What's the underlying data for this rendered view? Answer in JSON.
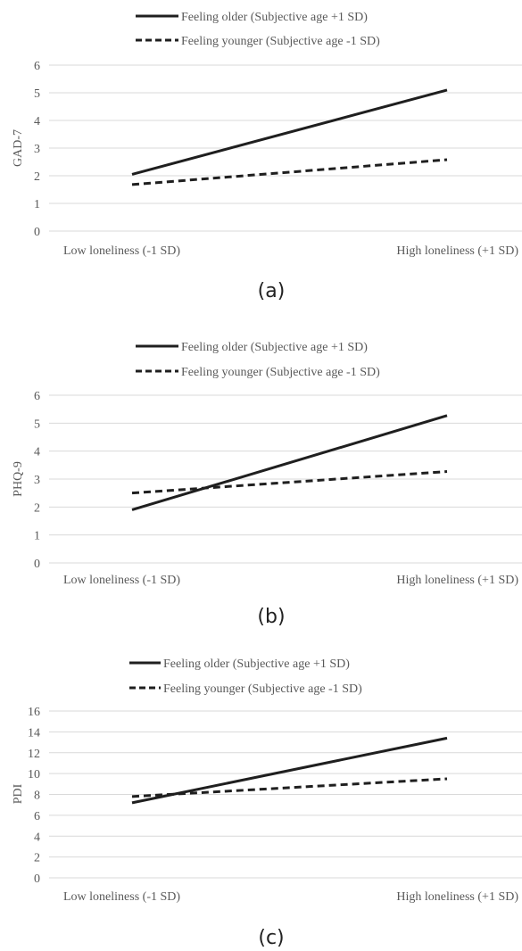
{
  "chart_data": [
    {
      "type": "line",
      "panel_label": "(a)",
      "ylabel": "GAD-7",
      "ylim": [
        0,
        6
      ],
      "yticks": [
        "0",
        "1",
        "2",
        "3",
        "4",
        "5",
        "6"
      ],
      "categories": [
        "Low loneliness (-1 SD)",
        "High loneliness (+1 SD)"
      ],
      "legend_position": "top",
      "grid": true,
      "series": [
        {
          "name": "Feeling older (Subjective age +1 SD)",
          "style": "solid",
          "values": [
            2.05,
            5.1
          ]
        },
        {
          "name": "Feeling younger (Subjective age -1 SD)",
          "style": "dashed",
          "values": [
            1.68,
            2.58
          ]
        }
      ]
    },
    {
      "type": "line",
      "panel_label": "(b)",
      "ylabel": "PHQ-9",
      "ylim": [
        0,
        6
      ],
      "yticks": [
        "0",
        "1",
        "2",
        "3",
        "4",
        "5",
        "6"
      ],
      "categories": [
        "Low loneliness (-1 SD)",
        "High loneliness (+1 SD)"
      ],
      "legend_position": "top",
      "grid": true,
      "series": [
        {
          "name": "Feeling older (Subjective age +1 SD)",
          "style": "solid",
          "values": [
            1.9,
            5.27
          ]
        },
        {
          "name": "Feeling younger (Subjective age -1 SD)",
          "style": "dashed",
          "values": [
            2.5,
            3.27
          ]
        }
      ]
    },
    {
      "type": "line",
      "panel_label": "(c)",
      "ylabel": "PDI",
      "ylim": [
        0,
        16
      ],
      "yticks": [
        "0",
        "2",
        "4",
        "6",
        "8",
        "10",
        "12",
        "14",
        "16"
      ],
      "categories": [
        "Low loneliness (-1 SD)",
        "High loneliness (+1 SD)"
      ],
      "legend_position": "top",
      "grid": true,
      "series": [
        {
          "name": "Feeling older (Subjective age +1 SD)",
          "style": "solid",
          "values": [
            7.2,
            13.4
          ]
        },
        {
          "name": "Feeling younger (Subjective age -1 SD)",
          "style": "dashed",
          "values": [
            7.8,
            9.5
          ]
        }
      ]
    }
  ],
  "colors": {
    "line": "#1f1f1f",
    "grid": "#d9d9d9",
    "text": "#595959"
  }
}
